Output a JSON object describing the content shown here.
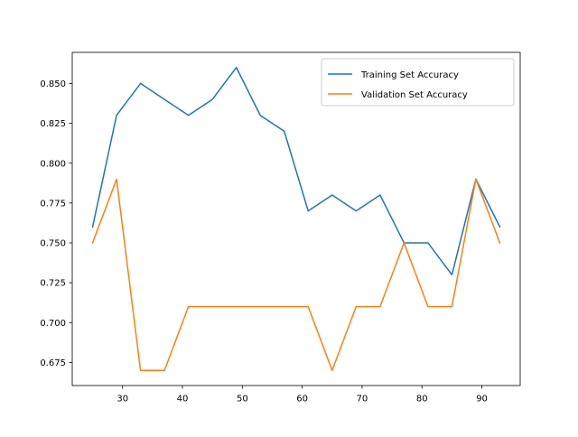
{
  "chart_data": {
    "type": "line",
    "title": "",
    "xlabel": "",
    "ylabel": "",
    "xlim": [
      21.6,
      96.4
    ],
    "ylim": [
      0.6605,
      0.8695
    ],
    "x_ticks": [
      30,
      40,
      50,
      60,
      70,
      80,
      90
    ],
    "y_ticks": [
      0.675,
      0.7,
      0.725,
      0.75,
      0.775,
      0.8,
      0.825,
      0.85
    ],
    "grid": false,
    "legend_position": "top-right",
    "x": [
      25,
      29,
      33,
      37,
      41,
      45,
      49,
      53,
      57,
      61,
      65,
      69,
      73,
      77,
      81,
      85,
      89,
      93
    ],
    "series": [
      {
        "name": "Training Set Accuracy",
        "color": "#1f77b4",
        "values": [
          0.76,
          0.83,
          0.85,
          0.84,
          0.83,
          0.84,
          0.86,
          0.83,
          0.82,
          0.77,
          0.78,
          0.77,
          0.78,
          0.75,
          0.75,
          0.73,
          0.79,
          0.76
        ]
      },
      {
        "name": "Validation Set Accuracy",
        "color": "#ff7f0e",
        "values": [
          0.75,
          0.79,
          0.67,
          0.67,
          0.71,
          0.71,
          0.71,
          0.71,
          0.71,
          0.71,
          0.67,
          0.71,
          0.71,
          0.75,
          0.71,
          0.71,
          0.79,
          0.75
        ]
      }
    ]
  }
}
